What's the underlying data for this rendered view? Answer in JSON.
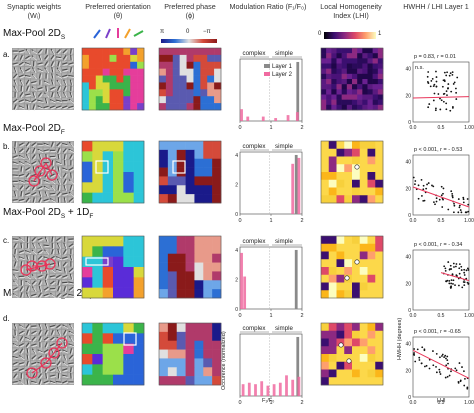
{
  "headers": {
    "col1": "Synaptic weights (Wᵢ)",
    "col2": "Preferred orientation (θ)",
    "col3": "Preferred phase (ϕ)",
    "col4": "Modulation Ratio (F₁/F₀)",
    "col5": "Local Homogeneity Index (LHI)",
    "col6": "HWHH / LHI Layer 1"
  },
  "phase_scale": {
    "left": "π",
    "mid": "0",
    "right": "−π"
  },
  "lhi_scale": {
    "min": "0",
    "max": "1"
  },
  "rows": [
    {
      "label": "a.",
      "title": "",
      "stats": "p = 0.83, r = 0.01",
      "ns": "n.s."
    },
    {
      "label": "b.",
      "title": "Max-Pool 2D_F",
      "stats": "p < 0.001, r = - 0.53"
    },
    {
      "label": "c.",
      "title": "Max-Pool 2D_S + 1D_F",
      "stats": "p < 0.001, r = - 0.34"
    },
    {
      "label": "d.",
      "title": "Max-Pool 2D_S + 2D_F",
      "stats": "p < 0.001, r = -0.65"
    }
  ],
  "row_titles": {
    "a": "Max-Pool 2D",
    "a_sub": "S",
    "b": "Max-Pool 2D",
    "b_sub": "F",
    "c": "Max-Pool 2D",
    "c_sub": "S",
    "c_tail": " + 1D",
    "c_tail_sub": "F",
    "d": "Max-Pool 2D",
    "d_sub": "S",
    "d_tail": " + 2D",
    "d_tail_sub": "F"
  },
  "modulation_axis": {
    "complex": "complex",
    "simple": "simple",
    "xticks": [
      "0",
      "1",
      "2"
    ],
    "ylabel": "Occurence (normalized)",
    "xlabel": "F₁/F₀"
  },
  "legend": {
    "layer1": "Layer 1",
    "layer2": "Layer 2"
  },
  "colors": {
    "layer1": "#8a8a8a",
    "layer2": "#f06aa0",
    "fit": "#e8365a"
  },
  "hwhh_axis": {
    "xticks": [
      "0.0",
      "0.5",
      "1.00"
    ],
    "yticks": [
      "0",
      "20",
      "40"
    ],
    "ylabel": "HWHH (degrees)",
    "xlabel": "LHI"
  },
  "chart_data": [
    {
      "type": "bar",
      "panel": "a",
      "series": [
        {
          "name": "Layer 1",
          "values": [
            {
              "x": 1.85,
              "y": 4.0
            }
          ]
        },
        {
          "name": "Layer 2",
          "values": [
            {
              "x": 0.05,
              "y": 0.8
            },
            {
              "x": 0.25,
              "y": 0.3
            },
            {
              "x": 0.75,
              "y": 0.3
            },
            {
              "x": 1.15,
              "y": 0.2
            },
            {
              "x": 1.55,
              "y": 0.4
            },
            {
              "x": 1.85,
              "y": 0.6
            }
          ]
        }
      ],
      "xlim": [
        0,
        2
      ]
    },
    {
      "type": "bar",
      "panel": "b",
      "series": [
        {
          "name": "Layer 1",
          "values": [
            {
              "x": 1.8,
              "y": 4.0
            }
          ]
        },
        {
          "name": "Layer 2",
          "values": [
            {
              "x": 1.7,
              "y": 3.4
            },
            {
              "x": 1.9,
              "y": 3.8
            }
          ]
        }
      ],
      "xlim": [
        0,
        2
      ],
      "ylim": [
        0,
        4
      ]
    },
    {
      "type": "bar",
      "panel": "c",
      "series": [
        {
          "name": "Layer 1",
          "values": [
            {
              "x": 1.8,
              "y": 4.0
            }
          ]
        },
        {
          "name": "Layer 2",
          "values": [
            {
              "x": 0.05,
              "y": 3.8
            },
            {
              "x": 0.15,
              "y": 2.2
            }
          ]
        }
      ],
      "xlim": [
        0,
        2
      ],
      "ylim": [
        0,
        4
      ]
    },
    {
      "type": "bar",
      "panel": "d",
      "series": [
        {
          "name": "Layer 1",
          "values": [
            {
              "x": 1.85,
              "y": 4.0
            }
          ]
        },
        {
          "name": "Layer 2",
          "values": [
            {
              "x": 0.1,
              "y": 0.8
            },
            {
              "x": 0.3,
              "y": 0.9
            },
            {
              "x": 0.5,
              "y": 0.8
            },
            {
              "x": 0.7,
              "y": 1.0
            },
            {
              "x": 0.9,
              "y": 0.7
            },
            {
              "x": 1.1,
              "y": 0.8
            },
            {
              "x": 1.3,
              "y": 0.9
            },
            {
              "x": 1.5,
              "y": 1.4
            },
            {
              "x": 1.7,
              "y": 1.1
            },
            {
              "x": 1.9,
              "y": 1.3
            }
          ]
        }
      ],
      "xlim": [
        0,
        2
      ]
    },
    {
      "type": "scatter",
      "panel": "a",
      "fit": {
        "x": [
          0.0,
          1.0
        ],
        "y": [
          18,
          19
        ]
      },
      "xlim": [
        0,
        1
      ],
      "ylim": [
        0,
        45
      ]
    },
    {
      "type": "scatter",
      "panel": "b",
      "fit": {
        "x": [
          0.0,
          1.0
        ],
        "y": [
          21,
          6
        ]
      },
      "xlim": [
        0,
        1
      ],
      "ylim": [
        0,
        45
      ]
    },
    {
      "type": "scatter",
      "panel": "c",
      "fit": {
        "x": [
          0.5,
          1.0
        ],
        "y": [
          28,
          22
        ]
      },
      "xlim": [
        0,
        1
      ],
      "ylim": [
        0,
        45
      ]
    },
    {
      "type": "scatter",
      "panel": "d",
      "fit": {
        "x": [
          0.0,
          1.0
        ],
        "y": [
          35,
          14
        ]
      },
      "xlim": [
        0,
        1
      ],
      "ylim": [
        0,
        45
      ]
    }
  ]
}
